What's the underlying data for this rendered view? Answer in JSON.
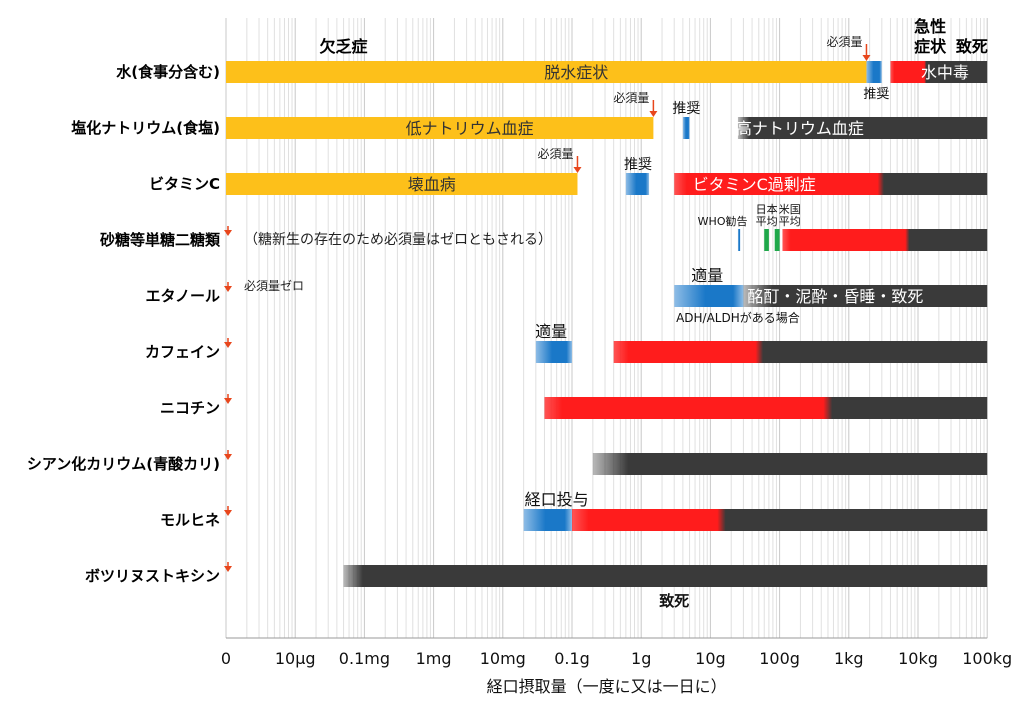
{
  "chart_data": {
    "type": "bar",
    "title": "",
    "xlabel": "経口摂取量（一度に又は一日に）",
    "x_scale": "log",
    "xlim": [
      "1µg",
      "100kg"
    ],
    "x_ticks": [
      {
        "label": "0",
        "value_g": 1e-06
      },
      {
        "label": "10µg",
        "value_g": 1e-05
      },
      {
        "label": "0.1mg",
        "value_g": 0.0001
      },
      {
        "label": "1mg",
        "value_g": 0.001
      },
      {
        "label": "10mg",
        "value_g": 0.01
      },
      {
        "label": "0.1g",
        "value_g": 0.1
      },
      {
        "label": "1g",
        "value_g": 1
      },
      {
        "label": "10g",
        "value_g": 10
      },
      {
        "label": "100g",
        "value_g": 100
      },
      {
        "label": "1kg",
        "value_g": 1000
      },
      {
        "label": "10kg",
        "value_g": 10000
      },
      {
        "label": "100kg",
        "value_g": 100000
      }
    ],
    "categories": [
      "水(食事分含む)",
      "塩化ナトリウム(食塩)",
      "ビタミンC",
      "砂糖等単糖二糖類",
      "エタノール",
      "カフェイン",
      "ニコチン",
      "シアン化カリウム(青酸カリ)",
      "モルヒネ",
      "ボツリヌストキシン"
    ],
    "legend": [
      {
        "label": "欠乏症",
        "color": "#FDC01A"
      },
      {
        "label": "急性症状",
        "color": "#FF1C1C"
      },
      {
        "label": "致死",
        "color": "#3A3A3A"
      }
    ],
    "colors": {
      "deficiency": "#FDC01A",
      "recommended": "#1A78C8",
      "acute": "#FF1C1C",
      "lethal": "#3A3A3A",
      "reference": "#1FA84A",
      "marker": "#E8461C"
    },
    "segments": [
      {
        "row": 0,
        "kind": "deficiency",
        "from_g": 1e-06,
        "to_g": 1800,
        "label": "脱水症状",
        "label_color": "#333333"
      },
      {
        "row": 0,
        "kind": "recommended",
        "from_g": 1800,
        "to_g": 3000
      },
      {
        "row": 0,
        "kind": "acute",
        "from_g": 4000,
        "to_g": 100000,
        "fade_to": "lethal",
        "fade_start": 0.35,
        "label": "水中毒",
        "label_color": "#ffffff"
      },
      {
        "row": 1,
        "kind": "deficiency",
        "from_g": 1e-06,
        "to_g": 1.5,
        "label": "低ナトリウム血症",
        "label_color": "#333333"
      },
      {
        "row": 1,
        "kind": "recommended",
        "from_g": 4,
        "to_g": 5
      },
      {
        "row": 1,
        "kind": "lethal",
        "from_g": 25,
        "to_g": 100000,
        "fade_in": 0.15,
        "label": "高ナトリウム血症",
        "label_color": "#ffffff"
      },
      {
        "row": 2,
        "kind": "deficiency",
        "from_g": 1e-06,
        "to_g": 0.12,
        "label": "壊血病",
        "label_color": "#333333"
      },
      {
        "row": 2,
        "kind": "recommended",
        "from_g": 0.6,
        "to_g": 1.3
      },
      {
        "row": 2,
        "kind": "acute",
        "from_g": 3,
        "to_g": 100000,
        "fade_to": "lethal",
        "fade_start": 0.65,
        "label": "ビタミンC過剰症",
        "label_color": "#ffffff"
      },
      {
        "row": 3,
        "kind": "recommended",
        "from_g": 25,
        "to_g": 27
      },
      {
        "row": 3,
        "kind": "reference",
        "from_g": 60,
        "to_g": 70
      },
      {
        "row": 3,
        "kind": "reference",
        "from_g": 85,
        "to_g": 100
      },
      {
        "row": 3,
        "kind": "acute",
        "from_g": 110,
        "to_g": 100000,
        "fade_to": "lethal",
        "fade_start": 0.6
      },
      {
        "row": 4,
        "kind": "recommended",
        "from_g": 3,
        "to_g": 30
      },
      {
        "row": 4,
        "kind": "lethal",
        "from_g": 30,
        "to_g": 100000,
        "fade_in": 0.4,
        "label": "酩酊・泥酔・昏睡・致死",
        "label_color": "#ffffff"
      },
      {
        "row": 5,
        "kind": "recommended",
        "from_g": 0.03,
        "to_g": 0.1
      },
      {
        "row": 5,
        "kind": "acute",
        "from_g": 0.4,
        "to_g": 100000,
        "fade_to": "lethal",
        "fade_start": 0.38
      },
      {
        "row": 6,
        "kind": "acute",
        "from_g": 0.04,
        "to_g": 100000,
        "fade_to": "lethal",
        "fade_start": 0.63
      },
      {
        "row": 7,
        "kind": "lethal",
        "from_g": 0.2,
        "to_g": 100000,
        "fade_in": 0.3
      },
      {
        "row": 8,
        "kind": "recommended",
        "from_g": 0.02,
        "to_g": 0.1
      },
      {
        "row": 8,
        "kind": "acute",
        "from_g": 0.1,
        "to_g": 100000,
        "fade_to": "lethal",
        "fade_start": 0.35
      },
      {
        "row": 9,
        "kind": "lethal",
        "from_g": 5e-05,
        "to_g": 100000,
        "fade_in": 0.1
      }
    ],
    "annotations": [
      {
        "row": 0,
        "text": "必須量",
        "at_g": 1800,
        "pos": "above-left",
        "size": 12,
        "arrow": true
      },
      {
        "row": 0,
        "text": "推奨",
        "at_g": 2500,
        "pos": "below",
        "size": 13
      },
      {
        "row": 1,
        "text": "必須量",
        "at_g": 1.5,
        "pos": "above-left",
        "size": 12,
        "arrow": true
      },
      {
        "row": 1,
        "text": "推奨",
        "at_g": 4.5,
        "pos": "above",
        "size": 14
      },
      {
        "row": 2,
        "text": "必須量",
        "at_g": 0.12,
        "pos": "above-left",
        "size": 12,
        "arrow": true
      },
      {
        "row": 2,
        "text": "推奨",
        "at_g": 0.9,
        "pos": "above",
        "size": 14
      },
      {
        "row": 3,
        "text": "（糖新生の存在のため必須量はゼロともされる）",
        "at_g": 2.5e-06,
        "pos": "inline",
        "size": 14,
        "arrow0": true
      },
      {
        "row": 3,
        "text": "WHO勧告",
        "at_g": 15,
        "pos": "above",
        "size": 11
      },
      {
        "row": 3,
        "text": "日本",
        "at_g": 65,
        "pos": "above2",
        "size": 11
      },
      {
        "row": 3,
        "text": "平均",
        "at_g": 65,
        "pos": "above",
        "size": 11
      },
      {
        "row": 3,
        "text": "米国",
        "at_g": 140,
        "pos": "above2",
        "size": 11
      },
      {
        "row": 3,
        "text": "平均",
        "at_g": 140,
        "pos": "above",
        "size": 11
      },
      {
        "row": 4,
        "text": "必須量ゼロ",
        "at_g": 2.5e-06,
        "pos": "inline-high",
        "size": 12,
        "arrow0": true
      },
      {
        "row": 4,
        "text": "適量",
        "at_g": 9,
        "pos": "above",
        "size": 16
      },
      {
        "row": 4,
        "text": "ADH/ALDHがある場合",
        "at_g": 25,
        "pos": "below",
        "size": 12
      },
      {
        "row": 5,
        "text": "適量",
        "at_g": 0.05,
        "pos": "above",
        "size": 16,
        "arrow0": true
      },
      {
        "row": 6,
        "text": "",
        "at_g": 1e-06,
        "pos": "none",
        "arrow0": true
      },
      {
        "row": 7,
        "text": "",
        "at_g": 1e-06,
        "pos": "none",
        "arrow0": true
      },
      {
        "row": 8,
        "text": "経口投与",
        "at_g": 0.06,
        "pos": "above",
        "size": 16,
        "arrow0": true
      },
      {
        "row": 9,
        "text": "致死",
        "at_g": 3,
        "pos": "below",
        "size": 15,
        "bold": true,
        "arrow0": true
      }
    ],
    "header_labels": [
      {
        "text": "欠乏症",
        "at_g": 5e-05,
        "line": 1
      },
      {
        "text": "急性",
        "at_g": 15000,
        "line": 0
      },
      {
        "text": "症状",
        "at_g": 15000,
        "line": 1
      },
      {
        "text": "致死",
        "at_g": 60000,
        "line": 1
      }
    ]
  }
}
